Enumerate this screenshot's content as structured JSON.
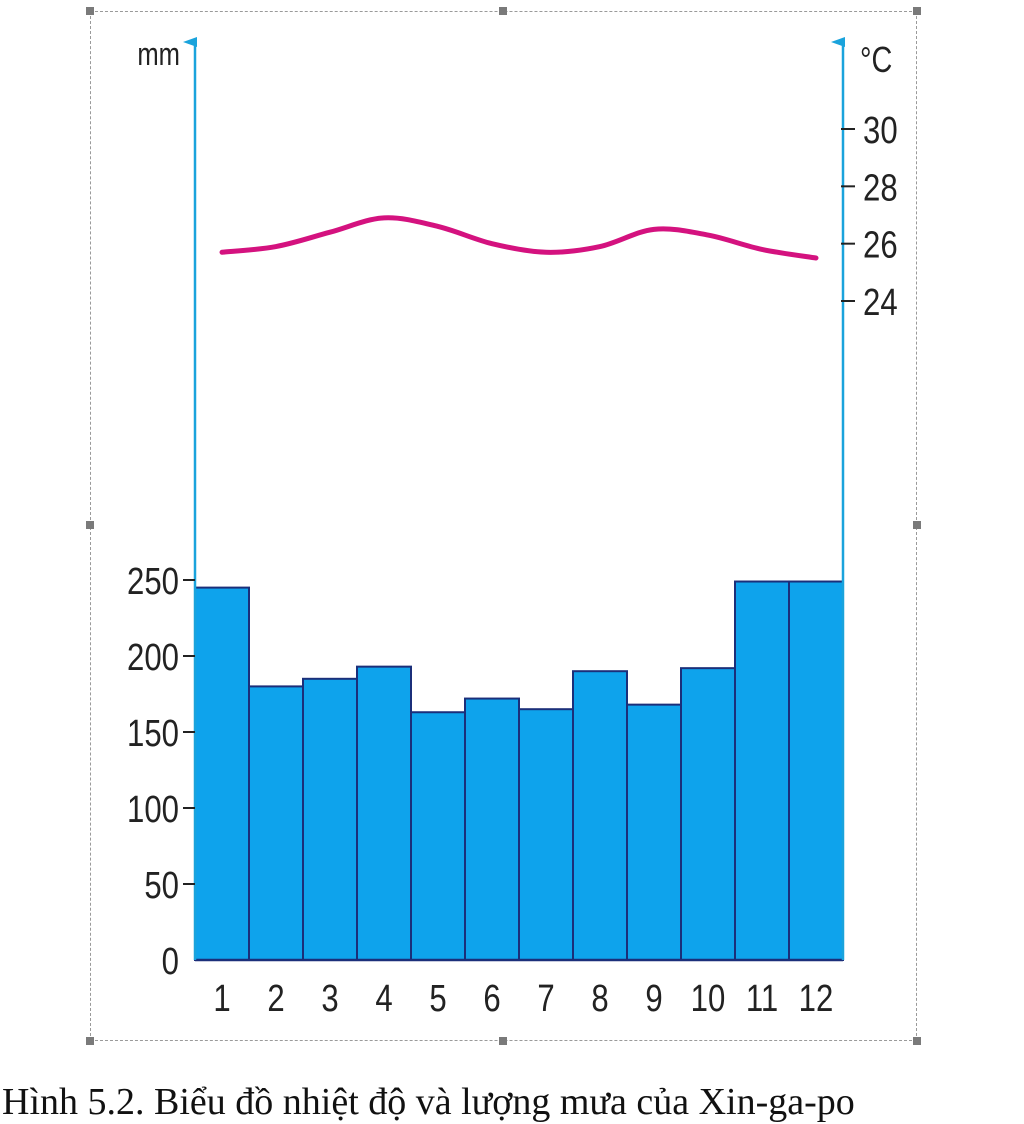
{
  "caption": "Hình 5.2. Biểu đồ nhiệt độ và lượng mưa của Xin-ga-po",
  "chart_data": {
    "type": "bar",
    "categories": [
      "1",
      "2",
      "3",
      "4",
      "5",
      "6",
      "7",
      "8",
      "9",
      "10",
      "11",
      "12"
    ],
    "series": [
      {
        "type": "bar",
        "axis": "left",
        "values": [
          245,
          180,
          185,
          193,
          163,
          172,
          165,
          190,
          168,
          192,
          249,
          249
        ],
        "color": "#0ea3ec"
      },
      {
        "type": "line",
        "axis": "right",
        "values": [
          25.7,
          25.9,
          26.4,
          26.9,
          26.6,
          26.0,
          25.7,
          25.9,
          26.5,
          26.3,
          25.8,
          25.5
        ],
        "color": "#d4127f"
      }
    ],
    "left_axis": {
      "label": "mm",
      "ticks": [
        "0",
        "50",
        "100",
        "150",
        "200",
        "250"
      ],
      "range": [
        0,
        250
      ]
    },
    "right_axis": {
      "label": "°C",
      "ticks": [
        "24",
        "26",
        "28",
        "30"
      ],
      "range": [
        24,
        30
      ]
    },
    "axis_color": "#1aa3dc",
    "grid": false,
    "legend": "none"
  }
}
